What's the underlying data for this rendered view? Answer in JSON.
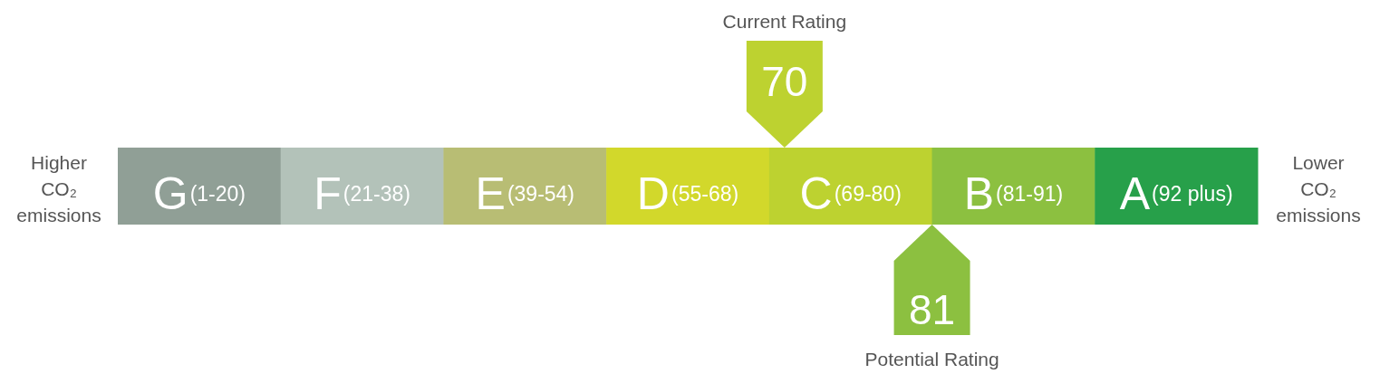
{
  "chart_data": {
    "type": "other",
    "categories": [
      "G",
      "F",
      "E",
      "D",
      "C",
      "B",
      "A"
    ],
    "value_labels": [
      "(1-20)",
      "(21-38)",
      "(39-54)",
      "(55-68)",
      "(69-80)",
      "(81-91)",
      "(92 plus)"
    ],
    "colors": [
      "#909f96",
      "#b3c2b9",
      "#b8bd74",
      "#d2d82b",
      "#bdd230",
      "#8cc040",
      "#27a04a"
    ],
    "series": [
      {
        "name": "Current Rating",
        "color": "#bdd230",
        "values": [
          null,
          null,
          null,
          null,
          70,
          null,
          null
        ]
      },
      {
        "name": "Potential Rating",
        "color": "#8cc040",
        "values": [
          null,
          null,
          null,
          null,
          null,
          81,
          null
        ]
      }
    ],
    "data_labels": true,
    "annotations": [
      "Higher CO₂ emissions",
      "Lower CO₂ emissions"
    ]
  }
}
